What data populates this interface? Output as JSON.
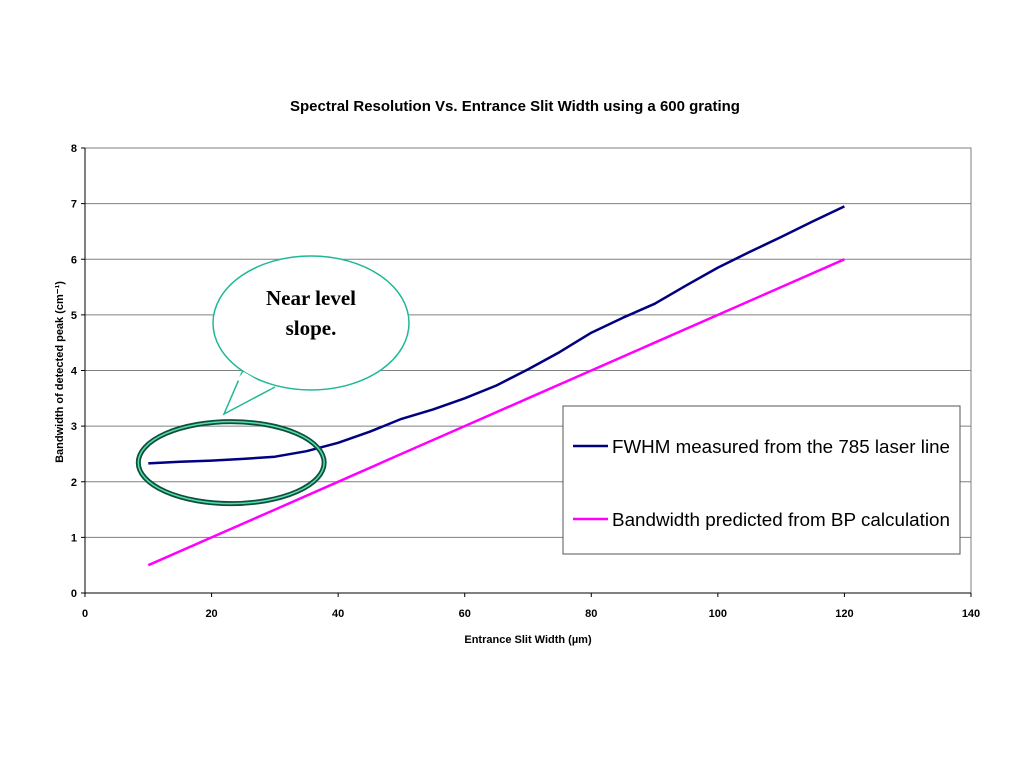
{
  "chart_data": {
    "type": "line",
    "title": "Spectral Resolution Vs. Entrance Slit Width using a 600 grating",
    "xlabel": "Entrance Slit Width (µm)",
    "ylabel": "Bandwidth of detected peak (cm⁻¹)",
    "xlim": [
      0,
      140
    ],
    "ylim": [
      0,
      8
    ],
    "xticks": [
      0,
      20,
      40,
      60,
      80,
      100,
      120,
      140
    ],
    "yticks": [
      0,
      1,
      2,
      3,
      4,
      5,
      6,
      7,
      8
    ],
    "grid": "horizontal",
    "legend_position": "bottom-right",
    "series": [
      {
        "name": "FWHM measured from the 785 laser line",
        "color": "#000080",
        "x": [
          10,
          15,
          20,
          25,
          30,
          35,
          40,
          45,
          50,
          55,
          60,
          65,
          70,
          75,
          80,
          85,
          90,
          95,
          100,
          105,
          110,
          115,
          120
        ],
        "y": [
          2.33,
          2.36,
          2.38,
          2.41,
          2.45,
          2.55,
          2.7,
          2.9,
          3.13,
          3.3,
          3.5,
          3.73,
          4.02,
          4.33,
          4.68,
          4.95,
          5.2,
          5.53,
          5.85,
          6.13,
          6.4,
          6.68,
          6.95
        ]
      },
      {
        "name": "Bandwidth predicted from BP calculation",
        "color": "#ff00ff",
        "x": [
          10,
          20,
          30,
          40,
          50,
          60,
          70,
          80,
          90,
          100,
          110,
          120
        ],
        "y": [
          0.5,
          1.0,
          1.5,
          2.0,
          2.5,
          3.0,
          3.5,
          4.0,
          4.5,
          5.0,
          5.5,
          6.0
        ]
      }
    ],
    "annotation": {
      "text_lines": [
        "Near level",
        "slope."
      ],
      "highlight_x_range": [
        10,
        37
      ],
      "highlight_y_center": 2.38,
      "color": "#1fb896"
    }
  }
}
